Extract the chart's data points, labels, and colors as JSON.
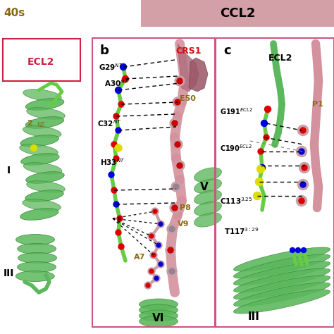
{
  "title": "CCL2",
  "panel_b_label": "b",
  "panel_c_label": "c",
  "ccl2_bar_color": "#d4a0a8",
  "background_color": "#ffffff",
  "green_helix": "#5cb85c",
  "green_dark": "#3a8a3a",
  "green_stick": "#66cc44",
  "green_bright": "#88ee22",
  "pink_ribbon": "#d4919e",
  "pink_dark": "#b06070",
  "pink_ball": "#c8a0a8",
  "panel_border": "#cc5588",
  "label_brown": "#8B6914",
  "label_red": "#cc2200",
  "red_atom": "#dd0000",
  "blue_atom": "#2244cc",
  "yellow_atom": "#dddd00",
  "black": "#000000",
  "figsize": [
    4.74,
    4.74
  ],
  "dpi": 100
}
